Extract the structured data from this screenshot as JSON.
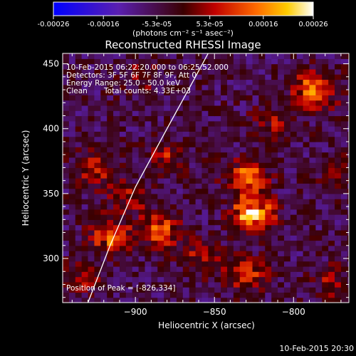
{
  "colorbar": {
    "ticks": [
      "-0.00026",
      "-0.00016",
      "-5.3e-05",
      "5.3e-05",
      "0.00016",
      "0.00026"
    ],
    "tick_values": [
      -0.00026,
      -0.00016,
      -5.3e-05,
      5.3e-05,
      0.00016,
      0.00026
    ],
    "unit_label": "(photons cm⁻² s⁻¹ asec⁻²)",
    "range": [
      -0.00026,
      0.00026
    ]
  },
  "annotations": {
    "time_range": "10-Feb-2015 06:22:20.000 to 06:25:52.000",
    "detectors": "Detectors: 3F 5F 6F 7F 8F 9F, Att 0",
    "energy": "Energy Range: 25.0 - 50.0 keV",
    "clean": "Clean",
    "total_counts": "Total counts: 4.33E+03",
    "peak": "Position of Peak = [-826,334]"
  },
  "timestamp": "10-Feb-2015 20:30",
  "chart_data": {
    "type": "heatmap",
    "title": "Reconstructed RHESSI Image",
    "xlabel": "Heliocentric X (arcsec)",
    "ylabel": "Heliocentric Y (arcsec)",
    "xlim": [
      -946,
      -765
    ],
    "ylim": [
      266,
      458
    ],
    "xticks": [
      -900,
      -850,
      -800
    ],
    "yticks": [
      300,
      350,
      400,
      450
    ],
    "peak_position": [
      -826,
      334
    ],
    "sources": [
      {
        "x": -826,
        "y": 334,
        "peak": 0.00026
      },
      {
        "x": -787,
        "y": 430,
        "peak": 0.00023
      },
      {
        "x": -829,
        "y": 363,
        "peak": 0.00019
      },
      {
        "x": -915,
        "y": 317,
        "peak": 0.00017
      },
      {
        "x": -884,
        "y": 321,
        "peak": 0.00016
      },
      {
        "x": -830,
        "y": 288,
        "peak": 0.00013
      },
      {
        "x": -925,
        "y": 368,
        "peak": 0.00011
      },
      {
        "x": -880,
        "y": 380,
        "peak": 9e-05
      },
      {
        "x": -905,
        "y": 347,
        "peak": 0.0001
      },
      {
        "x": -812,
        "y": 406,
        "peak": 9e-05
      },
      {
        "x": -935,
        "y": 285,
        "peak": 8e-05
      },
      {
        "x": -776,
        "y": 282,
        "peak": 8e-05
      },
      {
        "x": -858,
        "y": 300,
        "peak": 9e-05
      },
      {
        "x": -895,
        "y": 440,
        "peak": 7e-05
      },
      {
        "x": -770,
        "y": 365,
        "peak": 6e-05
      }
    ],
    "limb_curve": [
      [
        -930,
        266
      ],
      [
        -916,
        310
      ],
      [
        -900,
        355
      ],
      [
        -880,
        400
      ],
      [
        -862,
        440
      ],
      [
        -854,
        458
      ]
    ]
  }
}
